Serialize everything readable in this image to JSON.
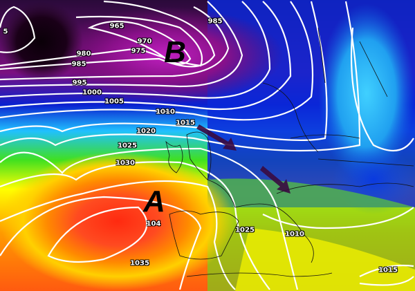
{
  "map": {
    "pressure_centers": [
      {
        "letter": "B",
        "type": "low"
      },
      {
        "letter": "A",
        "type": "high"
      }
    ],
    "isobar_labels": [
      "965",
      "970",
      "975",
      "980",
      "985",
      "985",
      "995",
      "1000",
      "1005",
      "1010",
      "1015",
      "1020",
      "1025",
      "1030",
      "1035",
      "1025",
      "1010",
      "1015",
      "104",
      "5"
    ],
    "arrows": [
      "flow-arrow",
      "flow-arrow"
    ],
    "colors": {
      "low": "#8a0f8a",
      "deep_low": "#120010",
      "blue": "#0a30e0",
      "cyan": "#40e8ff",
      "green": "#40e020",
      "yellow": "#ffff00",
      "orange": "#ff9a00",
      "red": "#ff3a10",
      "isobar": "#ffffff",
      "arrow": "#3a0a40"
    }
  }
}
